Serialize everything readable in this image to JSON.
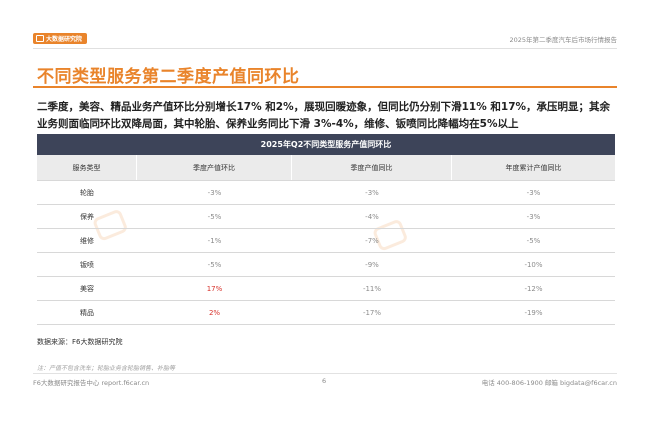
{
  "header": {
    "logo_text": "大数据研究院",
    "report_name": "2025年第二季度汽车后市场行情报告"
  },
  "page_title": "不同类型服务第二季度产值同环比",
  "summary": "二季度，美容、精品业务产值环比分别增长17% 和2%，展现回暖迹象，但同比仍分别下滑11% 和17%，承压明显；其余业务则面临同环比双降局面，其中轮胎、保养业务同比下滑 3%-4%，维修、钣喷同比降幅均在5%以上",
  "table": {
    "title": "2025年Q2不同类型服务产值同环比",
    "columns": [
      "服务类型",
      "季度产值环比",
      "季度产值同比",
      "年度累计产值同比"
    ],
    "rows": [
      {
        "type": "轮胎",
        "qoq": "-3%",
        "yoy": "-3%",
        "ytd": "-3%",
        "qoq_positive": false
      },
      {
        "type": "保养",
        "qoq": "-5%",
        "yoy": "-4%",
        "ytd": "-3%",
        "qoq_positive": false
      },
      {
        "type": "维修",
        "qoq": "-1%",
        "yoy": "-7%",
        "ytd": "-5%",
        "qoq_positive": false
      },
      {
        "type": "钣喷",
        "qoq": "-5%",
        "yoy": "-9%",
        "ytd": "-10%",
        "qoq_positive": false
      },
      {
        "type": "美容",
        "qoq": "17%",
        "yoy": "-11%",
        "ytd": "-12%",
        "qoq_positive": true
      },
      {
        "type": "精品",
        "qoq": "2%",
        "yoy": "-17%",
        "ytd": "-19%",
        "qoq_positive": true
      }
    ]
  },
  "source": "数据来源：F6大数据研究院",
  "note": "注：产值不包含洗车；轮胎业务含轮胎销售、补胎等",
  "footer": {
    "left": "F6大数据研究报告中心 report.f6car.cn",
    "page_number": "6",
    "right": "电话 400-806-1900  邮箱 bigdata@f6car.cn"
  },
  "watermark_text": "大数据研究院",
  "colors": {
    "accent": "#e9842b",
    "table_title_bg": "#3d4459",
    "positive": "#d7322b",
    "negative": "#8c8c8c"
  }
}
